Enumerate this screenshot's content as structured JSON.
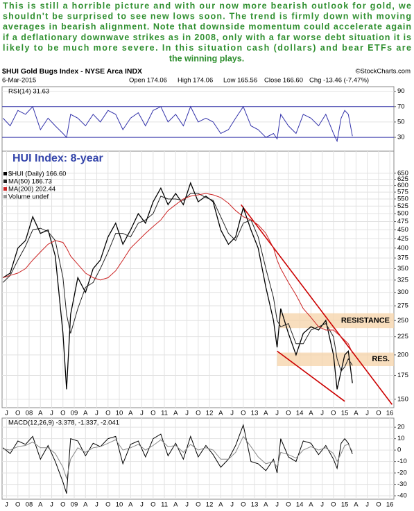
{
  "commentary": [
    "This is still a horrible picture and with our now more bearish outlook for gold, we",
    "shouldn't be surprised to see new lows soon. The trend is firmly down with moving",
    "averages in bearish alignment. Note that downside momentum could accelerate again",
    "if a deflationary downwave strikes as in 2008, only with a far worse debt situation it is",
    "likely to be much more severe. In this situation cash (dollars) and bear ETFs are",
    "the winning plays."
  ],
  "header": {
    "symbol": "$HUI Gold Bugs Index - NYSE Arca INDX",
    "source": "©StockCharts.com",
    "date": "6-Mar-2015",
    "quote": [
      "Open 174.06",
      "High 174.06",
      "Low 165.56",
      "Close 166.60",
      "Chg -13.46 (-7.47%)"
    ]
  },
  "chart_data": [
    {
      "type": "line",
      "label": "RSI(14) 31.63",
      "x": [
        2007.42,
        2007.58,
        2007.75,
        2007.92,
        2008.08,
        2008.25,
        2008.42,
        2008.58,
        2008.75,
        2008.83,
        2008.92,
        2009.08,
        2009.25,
        2009.42,
        2009.58,
        2009.75,
        2009.92,
        2010.08,
        2010.25,
        2010.42,
        2010.58,
        2010.75,
        2010.92,
        2011.08,
        2011.25,
        2011.42,
        2011.58,
        2011.75,
        2011.92,
        2012.08,
        2012.25,
        2012.42,
        2012.58,
        2012.75,
        2012.92,
        2013.08,
        2013.25,
        2013.42,
        2013.5,
        2013.58,
        2013.75,
        2013.92,
        2014.08,
        2014.25,
        2014.42,
        2014.58,
        2014.75,
        2014.83,
        2014.92,
        2015.0,
        2015.08,
        2015.17
      ],
      "series": [
        {
          "color": "#3333aa",
          "values": [
            55,
            45,
            65,
            60,
            70,
            40,
            55,
            45,
            35,
            30,
            60,
            55,
            45,
            60,
            50,
            65,
            60,
            40,
            55,
            62,
            45,
            65,
            70,
            50,
            60,
            45,
            70,
            50,
            55,
            50,
            35,
            40,
            55,
            70,
            45,
            40,
            30,
            35,
            28,
            60,
            45,
            35,
            60,
            55,
            45,
            60,
            35,
            25,
            55,
            65,
            60,
            31.63
          ]
        }
      ],
      "xlim": [
        2007.4,
        2016.09
      ],
      "ylim": [
        12,
        96
      ],
      "yticks": [
        90,
        70,
        50,
        30
      ],
      "ref_lines": [
        70,
        30
      ],
      "ref_color": "#3333aa",
      "grid": true
    },
    {
      "type": "line",
      "title": "HUI Index: 8-year",
      "log_scale": true,
      "x": [
        2007.42,
        2007.58,
        2007.75,
        2007.92,
        2008.08,
        2008.25,
        2008.42,
        2008.58,
        2008.75,
        2008.83,
        2008.92,
        2009.08,
        2009.25,
        2009.42,
        2009.58,
        2009.75,
        2009.92,
        2010.08,
        2010.25,
        2010.42,
        2010.58,
        2010.75,
        2010.92,
        2011.08,
        2011.25,
        2011.42,
        2011.58,
        2011.75,
        2011.92,
        2012.08,
        2012.25,
        2012.42,
        2012.58,
        2012.75,
        2012.92,
        2013.08,
        2013.25,
        2013.42,
        2013.5,
        2013.58,
        2013.75,
        2013.92,
        2014.08,
        2014.25,
        2014.42,
        2014.58,
        2014.75,
        2014.83,
        2014.92,
        2015.0,
        2015.08,
        2015.17
      ],
      "series": [
        {
          "name": "$HUI (Daily) 166.60",
          "color": "#000000",
          "values": [
            330,
            340,
            400,
            420,
            490,
            440,
            450,
            380,
            230,
            160,
            260,
            330,
            300,
            350,
            370,
            430,
            470,
            410,
            450,
            500,
            470,
            540,
            590,
            530,
            570,
            530,
            610,
            540,
            560,
            540,
            450,
            410,
            430,
            520,
            450,
            400,
            310,
            250,
            210,
            270,
            230,
            200,
            230,
            240,
            235,
            250,
            200,
            160,
            180,
            200,
            205,
            166.6
          ]
        },
        {
          "name": "MA(50) 186.73",
          "color": "#222222",
          "values": [
            320,
            335,
            370,
            405,
            450,
            455,
            445,
            420,
            330,
            260,
            230,
            270,
            310,
            320,
            350,
            390,
            440,
            440,
            430,
            470,
            480,
            500,
            560,
            550,
            550,
            545,
            570,
            570,
            555,
            545,
            490,
            440,
            420,
            470,
            480,
            430,
            350,
            290,
            250,
            240,
            245,
            215,
            215,
            235,
            240,
            245,
            225,
            195,
            180,
            185,
            195,
            186.73
          ]
        },
        {
          "name": "MA(200) 202.44",
          "color": "#cc2222",
          "values": [
            330,
            335,
            340,
            350,
            370,
            390,
            410,
            420,
            415,
            400,
            380,
            360,
            340,
            330,
            325,
            330,
            345,
            370,
            400,
            420,
            440,
            460,
            480,
            510,
            530,
            550,
            560,
            565,
            570,
            565,
            555,
            535,
            510,
            490,
            480,
            465,
            440,
            400,
            370,
            350,
            320,
            295,
            270,
            255,
            240,
            235,
            235,
            230,
            225,
            220,
            215,
            202.44
          ]
        }
      ],
      "legend_extra": "Volume undef",
      "xlim": [
        2007.4,
        2016.09
      ],
      "ylim": [
        142,
        750
      ],
      "yticks": [
        650,
        625,
        600,
        575,
        550,
        525,
        500,
        475,
        450,
        425,
        400,
        375,
        350,
        325,
        300,
        275,
        250,
        225,
        200,
        175,
        150
      ],
      "xticks": [
        {
          "value": 2007.5,
          "label": "J"
        },
        {
          "value": 2007.75,
          "label": "O"
        },
        {
          "value": 2008,
          "label": "08"
        },
        {
          "value": 2008.25,
          "label": "A"
        },
        {
          "value": 2008.5,
          "label": "J"
        },
        {
          "value": 2008.75,
          "label": "O"
        },
        {
          "value": 2009,
          "label": "09"
        },
        {
          "value": 2009.25,
          "label": "A"
        },
        {
          "value": 2009.5,
          "label": "J"
        },
        {
          "value": 2009.75,
          "label": "O"
        },
        {
          "value": 2010,
          "label": "10"
        },
        {
          "value": 2010.25,
          "label": "A"
        },
        {
          "value": 2010.5,
          "label": "J"
        },
        {
          "value": 2010.75,
          "label": "O"
        },
        {
          "value": 2011,
          "label": "11"
        },
        {
          "value": 2011.25,
          "label": "A"
        },
        {
          "value": 2011.5,
          "label": "J"
        },
        {
          "value": 2011.75,
          "label": "O"
        },
        {
          "value": 2012,
          "label": "12"
        },
        {
          "value": 2012.25,
          "label": "A"
        },
        {
          "value": 2012.5,
          "label": "J"
        },
        {
          "value": 2012.75,
          "label": "O"
        },
        {
          "value": 2013,
          "label": "13"
        },
        {
          "value": 2013.25,
          "label": "A"
        },
        {
          "value": 2013.5,
          "label": "J"
        },
        {
          "value": 2013.75,
          "label": "O"
        },
        {
          "value": 2014,
          "label": "14"
        },
        {
          "value": 2014.25,
          "label": "A"
        },
        {
          "value": 2014.5,
          "label": "J"
        },
        {
          "value": 2014.75,
          "label": "O"
        },
        {
          "value": 2015,
          "label": "15"
        },
        {
          "value": 2015.25,
          "label": "A"
        },
        {
          "value": 2015.5,
          "label": "J"
        },
        {
          "value": 2015.75,
          "label": "O"
        },
        {
          "value": 2016,
          "label": "16"
        }
      ],
      "bands": [
        {
          "label": "RESISTANCE",
          "x": [
            2013.55,
            2016.09
          ],
          "y": [
            238,
            262
          ]
        },
        {
          "label": "RES.",
          "x": [
            2013.5,
            2016.09
          ],
          "y": [
            186,
            203
          ]
        }
      ],
      "band_color": "#f6d3a8",
      "trendlines": [
        {
          "x": [
            2012.7,
            2016.05
          ],
          "y": [
            530,
            145
          ]
        },
        {
          "x": [
            2013.5,
            2015.0
          ],
          "y": [
            205,
            148
          ]
        }
      ],
      "trend_color": "#cc0000",
      "grid": true
    },
    {
      "type": "line",
      "label": "MACD(12,26,9) -3.378, -1.337, -2.041",
      "x": [
        2007.42,
        2007.58,
        2007.75,
        2007.92,
        2008.08,
        2008.25,
        2008.42,
        2008.58,
        2008.75,
        2008.83,
        2008.92,
        2009.08,
        2009.25,
        2009.42,
        2009.58,
        2009.75,
        2009.92,
        2010.08,
        2010.25,
        2010.42,
        2010.58,
        2010.75,
        2010.92,
        2011.08,
        2011.25,
        2011.42,
        2011.58,
        2011.75,
        2011.92,
        2012.08,
        2012.25,
        2012.42,
        2012.58,
        2012.75,
        2012.92,
        2013.08,
        2013.25,
        2013.42,
        2013.5,
        2013.58,
        2013.75,
        2013.92,
        2014.08,
        2014.25,
        2014.42,
        2014.58,
        2014.75,
        2014.83,
        2014.92,
        2015.0,
        2015.08,
        2015.17
      ],
      "series": [
        {
          "color": "#000000",
          "values": [
            2,
            -3,
            8,
            5,
            12,
            -8,
            4,
            -10,
            -28,
            -38,
            10,
            8,
            -5,
            6,
            3,
            10,
            12,
            -12,
            5,
            8,
            -6,
            10,
            14,
            -5,
            6,
            -8,
            12,
            -6,
            4,
            -4,
            -15,
            -8,
            4,
            22,
            -10,
            -12,
            -18,
            -8,
            -20,
            10,
            -6,
            -10,
            8,
            6,
            -4,
            4,
            -8,
            -16,
            6,
            10,
            6,
            -3.378
          ]
        },
        {
          "color": "#888888",
          "values": [
            1,
            0,
            3,
            4,
            7,
            2,
            2,
            -3,
            -15,
            -25,
            -8,
            2,
            -2,
            2,
            3,
            6,
            9,
            0,
            2,
            5,
            0,
            4,
            9,
            3,
            4,
            -2,
            5,
            0,
            2,
            0,
            -8,
            -8,
            -2,
            12,
            3,
            -6,
            -12,
            -10,
            -15,
            -2,
            -4,
            -7,
            0,
            3,
            0,
            2,
            -3,
            -10,
            -3,
            4,
            5,
            -1.337
          ]
        }
      ],
      "xlim": [
        2007.4,
        2016.09
      ],
      "ylim": [
        -43,
        28
      ],
      "yticks": [
        20,
        10,
        0,
        -10,
        -20,
        -30,
        -40
      ],
      "xticks": [
        {
          "value": 2007.5,
          "label": "J"
        },
        {
          "value": 2007.75,
          "label": "O"
        },
        {
          "value": 2008,
          "label": "08"
        },
        {
          "value": 2008.25,
          "label": "A"
        },
        {
          "value": 2008.5,
          "label": "J"
        },
        {
          "value": 2008.75,
          "label": "O"
        },
        {
          "value": 2009,
          "label": "09"
        },
        {
          "value": 2009.25,
          "label": "A"
        },
        {
          "value": 2009.5,
          "label": "J"
        },
        {
          "value": 2009.75,
          "label": "O"
        },
        {
          "value": 2010,
          "label": "10"
        },
        {
          "value": 2010.25,
          "label": "A"
        },
        {
          "value": 2010.5,
          "label": "J"
        },
        {
          "value": 2010.75,
          "label": "O"
        },
        {
          "value": 2011,
          "label": "11"
        },
        {
          "value": 2011.25,
          "label": "A"
        },
        {
          "value": 2011.5,
          "label": "J"
        },
        {
          "value": 2011.75,
          "label": "O"
        },
        {
          "value": 2012,
          "label": "12"
        },
        {
          "value": 2012.25,
          "label": "A"
        },
        {
          "value": 2012.5,
          "label": "J"
        },
        {
          "value": 2012.75,
          "label": "O"
        },
        {
          "value": 2013,
          "label": "13"
        },
        {
          "value": 2013.25,
          "label": "A"
        },
        {
          "value": 2013.5,
          "label": "J"
        },
        {
          "value": 2013.75,
          "label": "O"
        },
        {
          "value": 2014,
          "label": "14"
        },
        {
          "value": 2014.25,
          "label": "A"
        },
        {
          "value": 2014.5,
          "label": "J"
        },
        {
          "value": 2014.75,
          "label": "O"
        },
        {
          "value": 2015,
          "label": "15"
        },
        {
          "value": 2015.25,
          "label": "A"
        },
        {
          "value": 2015.5,
          "label": "J"
        },
        {
          "value": 2015.75,
          "label": "O"
        },
        {
          "value": 2016,
          "label": "16"
        }
      ],
      "grid": true
    }
  ]
}
